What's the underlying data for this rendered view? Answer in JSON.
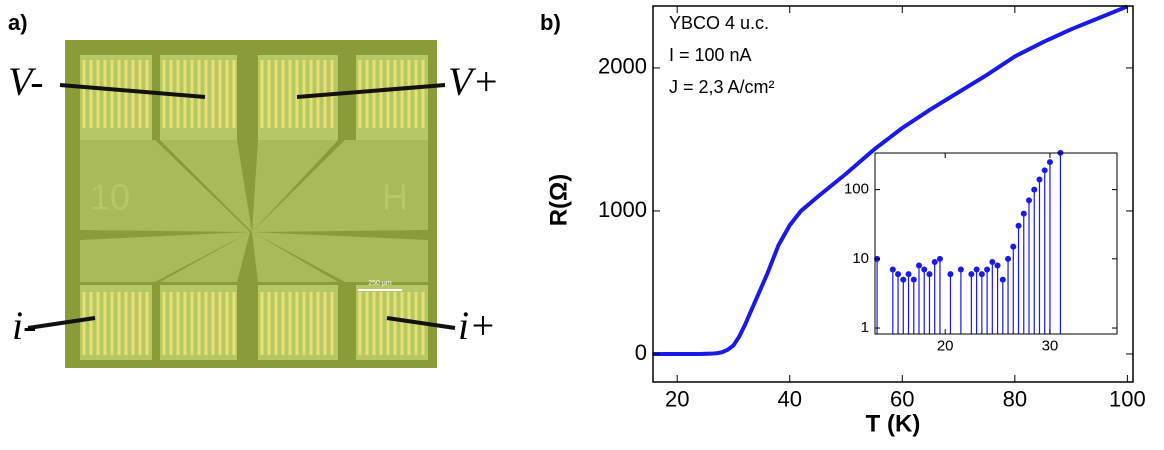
{
  "panels": {
    "a": "a)",
    "b": "b)"
  },
  "image": {
    "labels": {
      "v_minus": "V-",
      "v_plus": "V+",
      "i_minus": "i-",
      "i_plus": "i+",
      "chip_number": "10",
      "chip_letter": "H",
      "scale_bar": "250 µm"
    }
  },
  "chart_data": [
    {
      "type": "line",
      "xlabel": "T (K)",
      "ylabel": "R(Ω)",
      "annotations": [
        "YBCO 4 u.c.",
        "I = 100 nA",
        "J = 2,3 A/cm²"
      ],
      "x": [
        15.7,
        18,
        20,
        22,
        24,
        26,
        27,
        28,
        29,
        30,
        31,
        32,
        33,
        34,
        35,
        36,
        38,
        40,
        42,
        45,
        50,
        55,
        60,
        65,
        70,
        75,
        80,
        85,
        90,
        95,
        100
      ],
      "values": [
        0,
        0,
        0,
        0,
        0,
        2,
        5,
        12,
        30,
        60,
        120,
        200,
        290,
        380,
        470,
        560,
        760,
        900,
        1000,
        1100,
        1260,
        1430,
        1580,
        1710,
        1830,
        1950,
        2080,
        2180,
        2270,
        2350,
        2430
      ],
      "color": "#1a1ae6",
      "xlim": [
        15.7,
        101
      ],
      "ylim": [
        -196,
        2433
      ],
      "xticks": [
        20,
        40,
        60,
        80,
        100
      ],
      "yticks": [
        0,
        1000,
        2000
      ]
    },
    {
      "type": "stem",
      "log_y": true,
      "x": [
        13.5,
        15,
        15.5,
        16,
        16.5,
        17,
        17.5,
        18,
        18.5,
        19,
        19.5,
        20.5,
        21.5,
        22.5,
        23,
        23.5,
        24,
        24.5,
        25,
        25.5,
        26,
        26.5,
        27,
        27.5,
        28,
        28.5,
        29,
        29.5,
        30,
        31
      ],
      "values": [
        10,
        7,
        6,
        5,
        6,
        5,
        8,
        7,
        6,
        9,
        10,
        6,
        7,
        6,
        7,
        6,
        7,
        9,
        8,
        5,
        10,
        15,
        30,
        45,
        70,
        100,
        140,
        190,
        250,
        340
      ],
      "color": "#1a1ae6",
      "xlim": [
        13.3,
        36.4
      ],
      "ylim": [
        0.82,
        338
      ],
      "xticks": [
        20,
        30
      ],
      "yticks": [
        1,
        10,
        100
      ]
    }
  ]
}
